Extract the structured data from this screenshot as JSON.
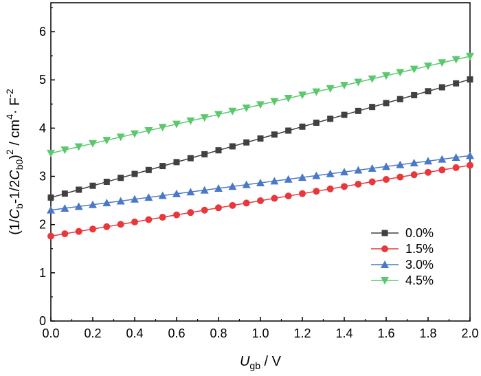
{
  "chart_data": {
    "type": "line",
    "x_axis_title": {
      "italic": "U",
      "sub": "gb",
      "rest": " / V"
    },
    "y_axis_title": {
      "p1": "(1/",
      "c1": "C",
      "s1": "b",
      "p2": "-1/2",
      "c2": "C",
      "s2": "b0",
      "p3": ")",
      "sup1": "2",
      "p4": " / cm",
      "sup2": "4",
      "p5": "· F",
      "sup3": "-2"
    },
    "xlim": [
      0.0,
      2.0
    ],
    "ylim": [
      0,
      6.6
    ],
    "x_ticks": [
      0.0,
      0.2,
      0.4,
      0.6,
      0.8,
      1.0,
      1.2,
      1.4,
      1.6,
      1.8,
      2.0
    ],
    "x_tick_labels": [
      "0.0",
      "0.2",
      "0.4",
      "0.6",
      "0.8",
      "1.0",
      "1.2",
      "1.4",
      "1.6",
      "1.8",
      "2.0"
    ],
    "y_ticks": [
      0,
      1,
      2,
      3,
      4,
      5,
      6
    ],
    "y_tick_labels": [
      "0",
      "1",
      "2",
      "3",
      "4",
      "5",
      "6"
    ],
    "legend_position": "lower-right",
    "series": [
      {
        "name": "0.0%",
        "color": "#404040",
        "marker": "square",
        "y0": 2.56,
        "y1": 5.01
      },
      {
        "name": "1.5%",
        "color": "#e8383b",
        "marker": "circle",
        "y0": 1.76,
        "y1": 3.23
      },
      {
        "name": "3.0%",
        "color": "#4a78c8",
        "marker": "triangle-up",
        "y0": 2.3,
        "y1": 3.43
      },
      {
        "name": "4.5%",
        "color": "#5cc86e",
        "marker": "triangle-down",
        "y0": 3.48,
        "y1": 5.49
      }
    ],
    "points_x": [
      0.0,
      0.0667,
      0.1333,
      0.2,
      0.2667,
      0.3333,
      0.4,
      0.4667,
      0.5333,
      0.6,
      0.6667,
      0.7333,
      0.8,
      0.8667,
      0.9333,
      1.0,
      1.0667,
      1.1333,
      1.2,
      1.2667,
      1.3333,
      1.4,
      1.4667,
      1.5333,
      1.6,
      1.6667,
      1.7333,
      1.8,
      1.8667,
      1.9333,
      2.0
    ]
  }
}
